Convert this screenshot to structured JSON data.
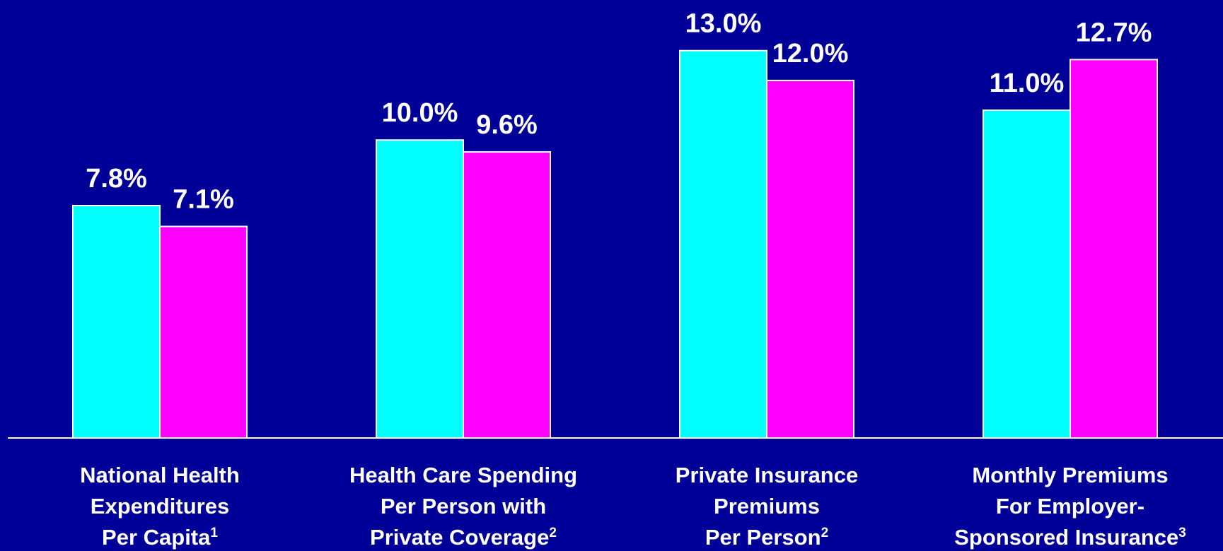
{
  "chart_data": {
    "type": "bar",
    "categories": [
      [
        "National Health",
        "Expenditures",
        "Per Capita"
      ],
      [
        "Health Care Spending",
        "Per Person with",
        "Private Coverage"
      ],
      [
        "Private Insurance",
        "Premiums",
        "Per Person"
      ],
      [
        "Monthly Premiums",
        "For Employer-",
        "Sponsored Insurance"
      ]
    ],
    "category_notes": [
      "1",
      "2",
      "2",
      "3"
    ],
    "series": [
      {
        "color": "#00ffff",
        "values": [
          7.8,
          10.0,
          13.0,
          11.0
        ],
        "value_labels": [
          "7.8%",
          "10.0%",
          "13.0%",
          "11.0%"
        ]
      },
      {
        "color": "#ff00ff",
        "values": [
          7.1,
          9.6,
          12.0,
          12.7
        ],
        "value_labels": [
          "7.1%",
          "9.6%",
          "12.0%",
          "12.7%"
        ]
      }
    ],
    "ylim": [
      0,
      14.7
    ]
  }
}
